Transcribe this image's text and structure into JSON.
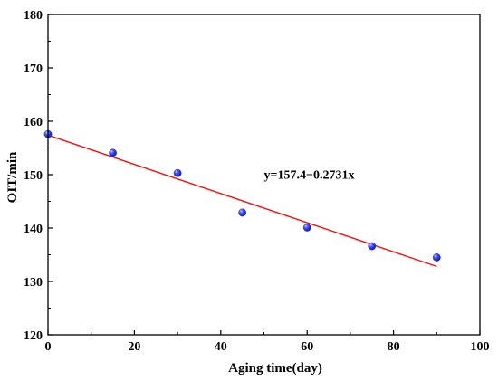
{
  "chart_data": {
    "type": "scatter",
    "xlabel": "Aging time(day)",
    "ylabel": "OIT/min",
    "xlim": [
      0,
      100
    ],
    "ylim": [
      120,
      180
    ],
    "xticks": [
      0,
      20,
      40,
      60,
      80,
      100
    ],
    "yticks": [
      120,
      130,
      140,
      150,
      160,
      170,
      180
    ],
    "grid": false,
    "series": [
      {
        "points": [
          {
            "x": 0,
            "y": 157.6
          },
          {
            "x": 15,
            "y": 154.1
          },
          {
            "x": 30,
            "y": 150.3
          },
          {
            "x": 45,
            "y": 142.9
          },
          {
            "x": 60,
            "y": 140.1
          },
          {
            "x": 75,
            "y": 136.6
          },
          {
            "x": 90,
            "y": 134.5
          }
        ],
        "color": "#2a36e0"
      }
    ],
    "fit_line": {
      "intercept": 157.4,
      "slope": -0.2731,
      "x_range": [
        0,
        90
      ],
      "color": "#ee1111"
    },
    "annotation": {
      "text": "y=157.4−0.2731x",
      "x": 50,
      "y": 149.2
    }
  }
}
